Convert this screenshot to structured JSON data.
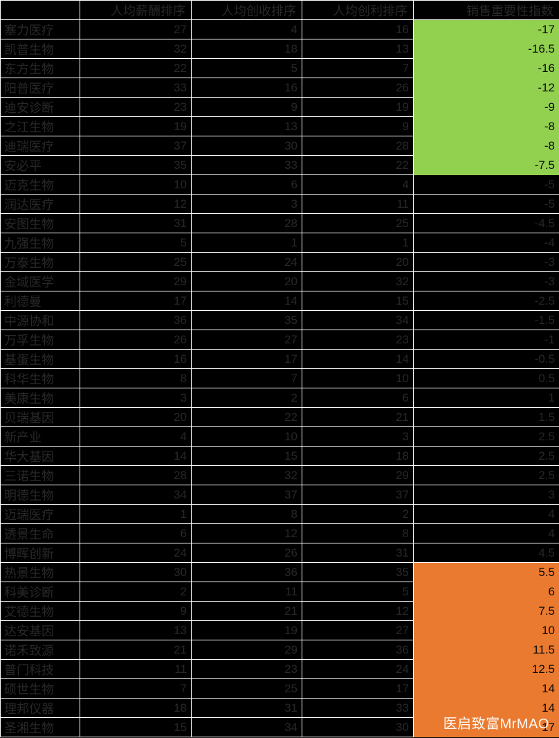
{
  "chart_data": {
    "type": "table",
    "columns": [
      "",
      "人均薪酬排序",
      "人均创收排序",
      "人均创利排序",
      "销售重要性指数"
    ],
    "rows": [
      {
        "company": "塞力医疗",
        "salary_rank": "27",
        "revenue_rank": "4",
        "profit_rank": "16",
        "importance_index": "-17",
        "highlight": "green"
      },
      {
        "company": "凯普生物",
        "salary_rank": "32",
        "revenue_rank": "18",
        "profit_rank": "13",
        "importance_index": "-16.5",
        "highlight": "green"
      },
      {
        "company": "东方生物",
        "salary_rank": "22",
        "revenue_rank": "5",
        "profit_rank": "7",
        "importance_index": "-16",
        "highlight": "green"
      },
      {
        "company": "阳普医疗",
        "salary_rank": "33",
        "revenue_rank": "16",
        "profit_rank": "26",
        "importance_index": "-12",
        "highlight": "green"
      },
      {
        "company": "迪安诊断",
        "salary_rank": "23",
        "revenue_rank": "9",
        "profit_rank": "19",
        "importance_index": "-9",
        "highlight": "green"
      },
      {
        "company": "之江生物",
        "salary_rank": "19",
        "revenue_rank": "13",
        "profit_rank": "9",
        "importance_index": "-8",
        "highlight": "green"
      },
      {
        "company": "迪瑞医疗",
        "salary_rank": "37",
        "revenue_rank": "30",
        "profit_rank": "28",
        "importance_index": "-8",
        "highlight": "green"
      },
      {
        "company": "安必平",
        "salary_rank": "35",
        "revenue_rank": "33",
        "profit_rank": "22",
        "importance_index": "-7.5",
        "highlight": "green"
      },
      {
        "company": "迈克生物",
        "salary_rank": "10",
        "revenue_rank": "6",
        "profit_rank": "4",
        "importance_index": "-5",
        "highlight": "none"
      },
      {
        "company": "润达医疗",
        "salary_rank": "12",
        "revenue_rank": "3",
        "profit_rank": "11",
        "importance_index": "-5",
        "highlight": "none"
      },
      {
        "company": "安图生物",
        "salary_rank": "31",
        "revenue_rank": "28",
        "profit_rank": "25",
        "importance_index": "-4.5",
        "highlight": "none"
      },
      {
        "company": "九强生物",
        "salary_rank": "5",
        "revenue_rank": "1",
        "profit_rank": "1",
        "importance_index": "-4",
        "highlight": "none"
      },
      {
        "company": "万泰生物",
        "salary_rank": "25",
        "revenue_rank": "24",
        "profit_rank": "20",
        "importance_index": "-3",
        "highlight": "none"
      },
      {
        "company": "金域医学",
        "salary_rank": "29",
        "revenue_rank": "20",
        "profit_rank": "32",
        "importance_index": "-3",
        "highlight": "none"
      },
      {
        "company": "利德曼",
        "salary_rank": "17",
        "revenue_rank": "14",
        "profit_rank": "15",
        "importance_index": "-2.5",
        "highlight": "none"
      },
      {
        "company": "中源协和",
        "salary_rank": "36",
        "revenue_rank": "35",
        "profit_rank": "34",
        "importance_index": "-1.5",
        "highlight": "none"
      },
      {
        "company": "万孚生物",
        "salary_rank": "26",
        "revenue_rank": "27",
        "profit_rank": "23",
        "importance_index": "-1",
        "highlight": "none"
      },
      {
        "company": "基蛋生物",
        "salary_rank": "16",
        "revenue_rank": "17",
        "profit_rank": "14",
        "importance_index": "-0.5",
        "highlight": "none"
      },
      {
        "company": "科华生物",
        "salary_rank": "8",
        "revenue_rank": "7",
        "profit_rank": "10",
        "importance_index": "0.5",
        "highlight": "none"
      },
      {
        "company": "美康生物",
        "salary_rank": "3",
        "revenue_rank": "2",
        "profit_rank": "6",
        "importance_index": "1",
        "highlight": "none"
      },
      {
        "company": "贝瑞基因",
        "salary_rank": "20",
        "revenue_rank": "22",
        "profit_rank": "21",
        "importance_index": "1.5",
        "highlight": "none"
      },
      {
        "company": "新产业",
        "salary_rank": "4",
        "revenue_rank": "10",
        "profit_rank": "3",
        "importance_index": "2.5",
        "highlight": "none"
      },
      {
        "company": "华大基因",
        "salary_rank": "14",
        "revenue_rank": "15",
        "profit_rank": "18",
        "importance_index": "2.5",
        "highlight": "none"
      },
      {
        "company": "三诺生物",
        "salary_rank": "28",
        "revenue_rank": "32",
        "profit_rank": "29",
        "importance_index": "2.5",
        "highlight": "none"
      },
      {
        "company": "明德生物",
        "salary_rank": "34",
        "revenue_rank": "37",
        "profit_rank": "37",
        "importance_index": "3",
        "highlight": "none"
      },
      {
        "company": "迈瑞医疗",
        "salary_rank": "1",
        "revenue_rank": "8",
        "profit_rank": "2",
        "importance_index": "4",
        "highlight": "none"
      },
      {
        "company": "透景生命",
        "salary_rank": "6",
        "revenue_rank": "12",
        "profit_rank": "8",
        "importance_index": "4",
        "highlight": "none"
      },
      {
        "company": "博晖创新",
        "salary_rank": "24",
        "revenue_rank": "26",
        "profit_rank": "31",
        "importance_index": "4.5",
        "highlight": "none"
      },
      {
        "company": "热景生物",
        "salary_rank": "30",
        "revenue_rank": "36",
        "profit_rank": "35",
        "importance_index": "5.5",
        "highlight": "orange"
      },
      {
        "company": "科美诊断",
        "salary_rank": "2",
        "revenue_rank": "11",
        "profit_rank": "5",
        "importance_index": "6",
        "highlight": "orange"
      },
      {
        "company": "艾德生物",
        "salary_rank": "9",
        "revenue_rank": "21",
        "profit_rank": "12",
        "importance_index": "7.5",
        "highlight": "orange"
      },
      {
        "company": "达安基因",
        "salary_rank": "13",
        "revenue_rank": "19",
        "profit_rank": "27",
        "importance_index": "10",
        "highlight": "orange"
      },
      {
        "company": "诺禾致源",
        "salary_rank": "21",
        "revenue_rank": "29",
        "profit_rank": "36",
        "importance_index": "11.5",
        "highlight": "orange"
      },
      {
        "company": "普门科技",
        "salary_rank": "11",
        "revenue_rank": "23",
        "profit_rank": "24",
        "importance_index": "12.5",
        "highlight": "orange"
      },
      {
        "company": "硕世生物",
        "salary_rank": "7",
        "revenue_rank": "25",
        "profit_rank": "17",
        "importance_index": "14",
        "highlight": "orange"
      },
      {
        "company": "理邦仪器",
        "salary_rank": "18",
        "revenue_rank": "31",
        "profit_rank": "33",
        "importance_index": "14",
        "highlight": "orange"
      },
      {
        "company": "圣湘生物",
        "salary_rank": "15",
        "revenue_rank": "34",
        "profit_rank": "30",
        "importance_index": "17",
        "highlight": "orange"
      }
    ]
  },
  "colors": {
    "cell_background": "#000000",
    "cell_text": "#282828",
    "gridline": "#ffffff",
    "green_highlight": "#92D050",
    "orange_highlight": "#EA7A2F"
  },
  "watermark": {
    "text": "医启致富MrMAO"
  }
}
